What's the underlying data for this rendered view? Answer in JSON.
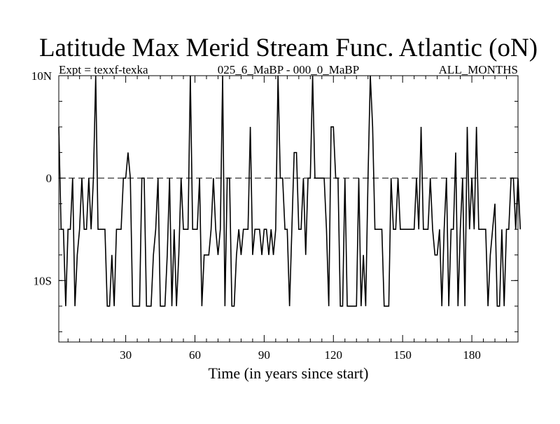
{
  "chart_data": {
    "type": "line",
    "title": "Latitude Max Merid Stream Func. Atlantic (oN)",
    "subtitle_left": "Expt = texxf-texka",
    "subtitle_center": "025_6_MaBP - 000_0_MaBP",
    "subtitle_right": "ALL_MONTHS",
    "xlabel": "Time (in years since start)",
    "ylabel": "",
    "xlim": [
      1,
      200
    ],
    "ylim": [
      -16,
      10
    ],
    "x_ticks": [
      30,
      60,
      90,
      120,
      150,
      180
    ],
    "y_ticks": [
      {
        "value": 10,
        "label": "10N"
      },
      {
        "value": 0,
        "label": "0"
      },
      {
        "value": -10,
        "label": "10S"
      }
    ],
    "reference_line": {
      "value": 0,
      "style": "dashed"
    },
    "grid": false,
    "series": [
      {
        "name": "Latitude Max Merid Stream Func.",
        "x_start": 1,
        "x_step": 1,
        "values": [
          5,
          -5,
          -5,
          -12.5,
          -5,
          -5,
          0,
          -12.5,
          -7.5,
          -5,
          0,
          -5,
          -5,
          0,
          -5,
          0,
          10,
          -5,
          -5,
          -5,
          -5,
          -12.5,
          -12.5,
          -7.5,
          -12.5,
          -5,
          -5,
          -5,
          0,
          0,
          2.5,
          0,
          -12.5,
          -12.5,
          -12.5,
          -12.5,
          0,
          0,
          -12.5,
          -12.5,
          -12.5,
          -7.5,
          -5,
          0,
          -12.5,
          -12.5,
          -12.5,
          -7.5,
          0,
          -12.5,
          -5,
          -12.5,
          -7.5,
          0,
          -5,
          -5,
          -5,
          10,
          -5,
          -5,
          -5,
          0,
          -12.5,
          -7.5,
          -7.5,
          -7.5,
          -5,
          0,
          -5,
          -7.5,
          -5,
          10,
          -12.5,
          0,
          0,
          -12.5,
          -12.5,
          -7.5,
          -5,
          -7.5,
          -5,
          -5,
          -5,
          5,
          -7.5,
          -5,
          -5,
          -5,
          -7.5,
          -5,
          -5,
          -7.5,
          -5,
          -7.5,
          -5,
          10,
          0,
          0,
          -5,
          -5,
          -12.5,
          -5,
          2.5,
          2.5,
          -5,
          -5,
          0,
          -7.5,
          0,
          0,
          10,
          0,
          0,
          0,
          0,
          0,
          -5,
          -12.5,
          5,
          5,
          0,
          0,
          -12.5,
          -12.5,
          0,
          -12.5,
          -12.5,
          -12.5,
          -12.5,
          -12.5,
          0,
          -12.5,
          -7.5,
          -12.5,
          0,
          10,
          5,
          -5,
          -5,
          -5,
          -5,
          -12.5,
          -12.5,
          -12.5,
          0,
          -5,
          -5,
          0,
          -5,
          -5,
          -5,
          -5,
          -5,
          -5,
          -5,
          0,
          -5,
          5,
          -5,
          -5,
          -5,
          0,
          -5,
          -7.5,
          -7.5,
          -5,
          -12.5,
          -5,
          0,
          -12.5,
          -5,
          -5,
          2.5,
          -12.5,
          -5,
          0,
          -12.5,
          5,
          -5,
          0,
          -5,
          5,
          -5,
          -5,
          -5,
          -5,
          -12.5,
          -7.5,
          -5,
          -2.5,
          -12.5,
          -12.5,
          -5,
          -12.5,
          -5,
          -5,
          0,
          0,
          -5,
          0,
          -5
        ]
      }
    ]
  }
}
